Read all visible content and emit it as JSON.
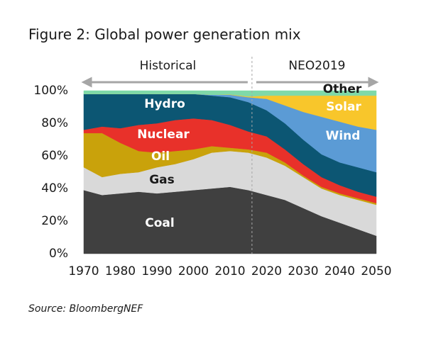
{
  "chart_data": {
    "type": "stacked_area",
    "title": "Figure 2: Global power generation mix",
    "annotations": [
      "Historical",
      "NEO2019"
    ],
    "forecast_start": 2016,
    "source": "Source: BloombergNEF",
    "x": [
      1970,
      1975,
      1980,
      1985,
      1990,
      1995,
      2000,
      2005,
      2010,
      2015,
      2020,
      2025,
      2030,
      2035,
      2040,
      2045,
      2050
    ],
    "series": [
      {
        "name": "Coal",
        "color": "#404040",
        "values": [
          39,
          36,
          37,
          38,
          37,
          38,
          39,
          40,
          41,
          39,
          36,
          33,
          28,
          23,
          19,
          15,
          11
        ]
      },
      {
        "name": "Gas",
        "color": "#d9d9d9",
        "values": [
          14,
          11,
          12,
          12,
          16,
          17,
          19,
          22,
          22,
          23,
          23,
          21,
          19,
          17,
          17,
          18,
          19
        ]
      },
      {
        "name": "Oil",
        "color": "#c9a20b",
        "values": [
          21,
          27,
          19,
          13,
          9,
          8,
          6,
          4,
          2,
          2,
          3,
          2,
          1,
          1,
          1,
          1,
          1
        ]
      },
      {
        "name": "Nuclear",
        "color": "#e8312a",
        "values": [
          2,
          4,
          9,
          16,
          18,
          19,
          19,
          16,
          14,
          11,
          10,
          8,
          7,
          6,
          5,
          4,
          4
        ]
      },
      {
        "name": "Hydro",
        "color": "#0c5673",
        "values": [
          22,
          20,
          21,
          19,
          18,
          16,
          15,
          15,
          17,
          18,
          16,
          16,
          15,
          14,
          14,
          15,
          15
        ]
      },
      {
        "name": "Wind",
        "color": "#5b9bd5",
        "values": [
          0,
          0,
          0,
          0,
          0,
          0,
          0,
          0.5,
          1.5,
          3,
          7,
          11,
          17,
          23,
          25,
          25,
          26
        ]
      },
      {
        "name": "Solar",
        "color": "#f8c62b",
        "values": [
          0,
          0,
          0,
          0,
          0,
          0,
          0,
          0,
          0.2,
          0.5,
          2,
          6,
          10,
          13,
          16,
          19,
          21
        ]
      },
      {
        "name": "Other",
        "color": "#7fd9a8",
        "values": [
          2,
          2,
          2,
          2,
          2,
          2,
          2,
          2.5,
          2.3,
          3.5,
          3,
          3,
          3,
          3,
          3,
          3,
          3
        ]
      }
    ],
    "xlim": [
      1970,
      2050
    ],
    "xticks": [
      1970,
      1980,
      1990,
      2000,
      2010,
      2020,
      2030,
      2040,
      2050
    ],
    "ylim": [
      0,
      100
    ],
    "yticks": [
      {
        "value": 0,
        "label": "0%"
      },
      {
        "value": 20,
        "label": "20%"
      },
      {
        "value": 40,
        "label": "40%"
      },
      {
        "value": 60,
        "label": "60%"
      },
      {
        "value": 80,
        "label": "80%"
      },
      {
        "value": 100,
        "label": "100%"
      }
    ]
  }
}
